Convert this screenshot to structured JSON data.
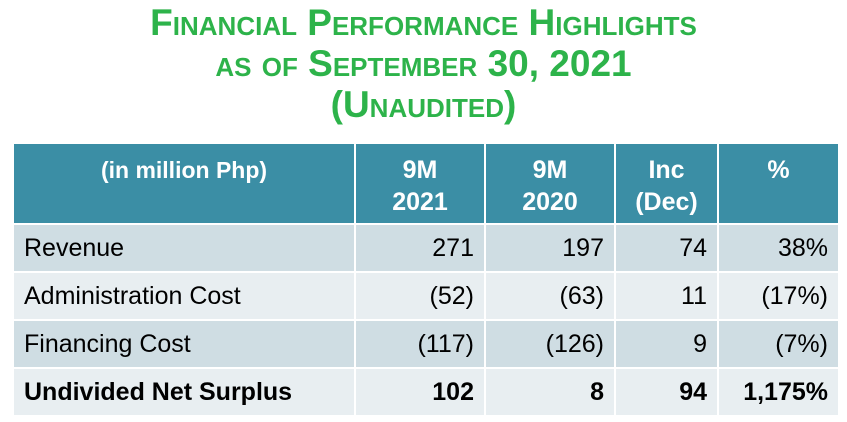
{
  "title": {
    "line1": "Financial Performance Highlights",
    "line2": "as of September 30, 2021",
    "line3": "(Unaudited)"
  },
  "table": {
    "headers": [
      [
        "(in million Php)"
      ],
      [
        "9M",
        "2021"
      ],
      [
        "9M",
        "2020"
      ],
      [
        "Inc",
        "(Dec)"
      ],
      [
        "%"
      ]
    ],
    "rows": [
      [
        "Revenue",
        "271",
        "197",
        "74",
        "38%"
      ],
      [
        "Administration Cost",
        "(52)",
        "(63)",
        "11",
        "(17%)"
      ],
      [
        "Financing Cost",
        "(117)",
        "(126)",
        "9",
        "(7%)"
      ],
      [
        "Undivided Net Surplus",
        "102",
        "8",
        "94",
        "1,175%"
      ]
    ]
  },
  "colors": {
    "title": "#2db34a",
    "header_bg": "#3b8ea5",
    "row_dark": "#cfdde3",
    "row_light": "#e8eef1"
  }
}
